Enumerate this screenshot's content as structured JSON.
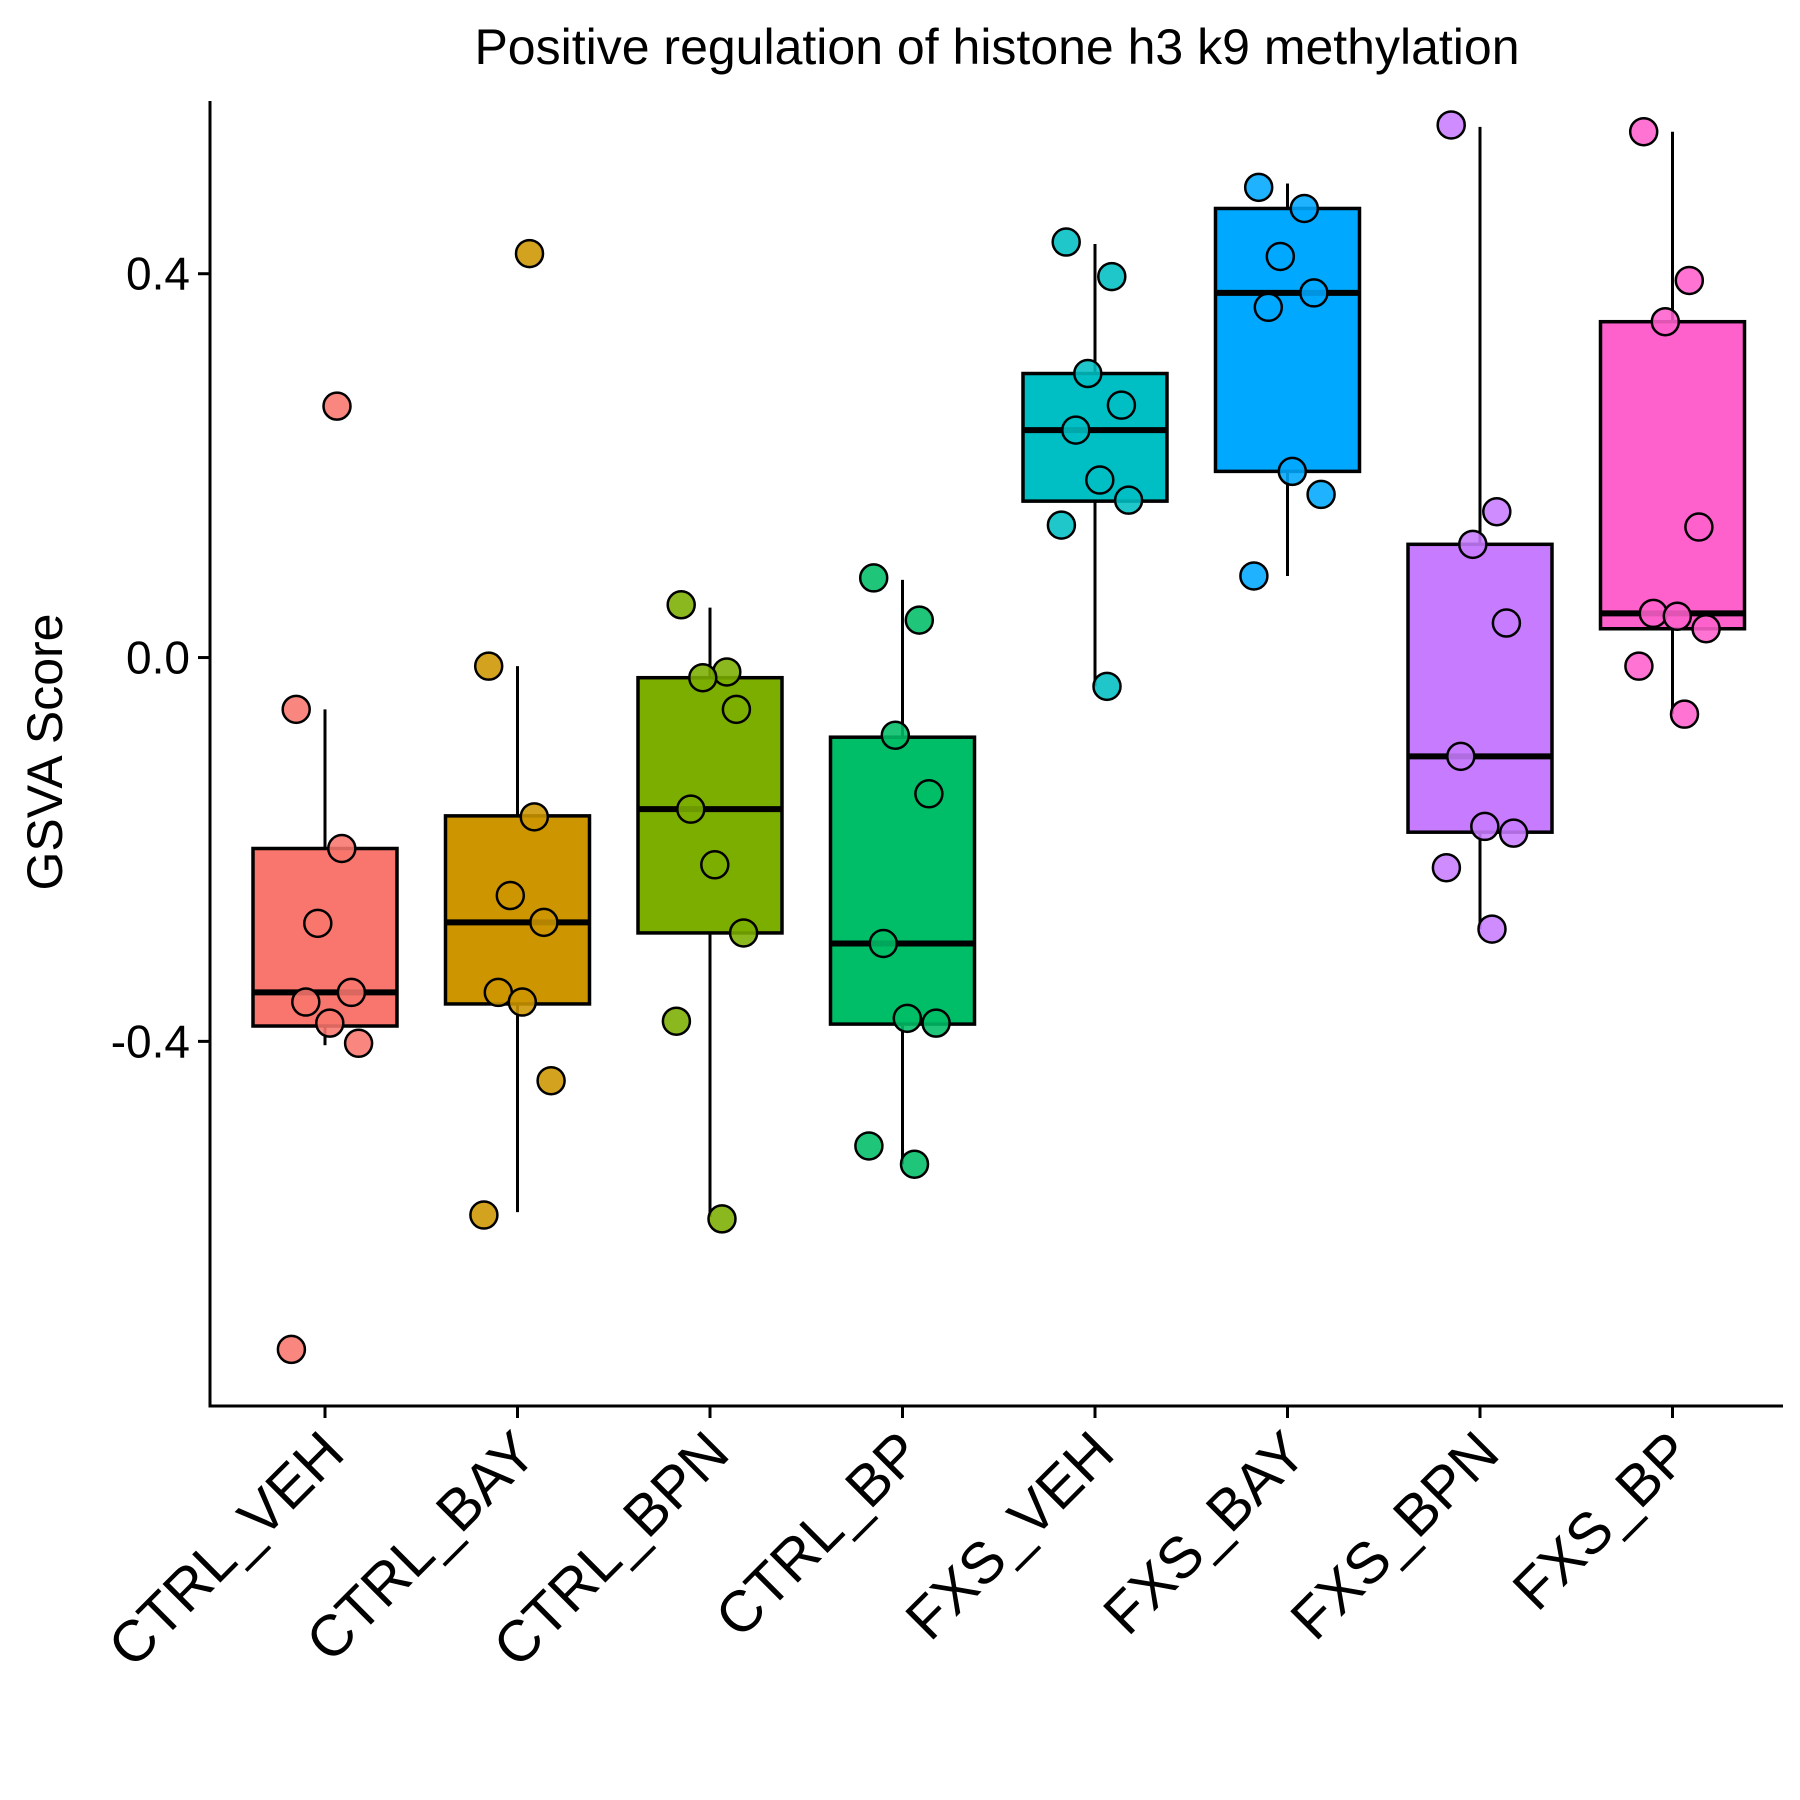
{
  "chart_data": {
    "type": "box",
    "title": "Positive regulation of histone h3 k9 methylation",
    "xlabel": "",
    "ylabel": "GSVA Score",
    "ylim": [
      -0.78,
      0.58
    ],
    "yticks": [
      {
        "value": -0.4,
        "label": "-0.4"
      },
      {
        "value": 0.0,
        "label": "0.0"
      },
      {
        "value": 0.4,
        "label": "0.4"
      }
    ],
    "grid": false,
    "legend": "none",
    "categories": [
      "CTRL_VEH",
      "CTRL_BAY",
      "CTRL_BPN",
      "CTRL_BP",
      "FXS_VEH",
      "FXS_BAY",
      "FXS_BPN",
      "FXS_BP"
    ],
    "groups": [
      {
        "name": "CTRL_VEH",
        "color": "#F8766D",
        "box": {
          "q1": -0.384,
          "median": -0.349,
          "q3": -0.199,
          "whisker_low": -0.404,
          "whisker_high": -0.054
        },
        "points": [
          -0.054,
          -0.199,
          -0.277,
          -0.349,
          -0.359,
          -0.381,
          -0.402,
          -0.721,
          0.262
        ]
      },
      {
        "name": "CTRL_BAY",
        "color": "#CD9600",
        "box": {
          "q1": -0.361,
          "median": -0.276,
          "q3": -0.165,
          "whisker_low": -0.578,
          "whisker_high": -0.009
        },
        "points": [
          -0.009,
          -0.166,
          -0.248,
          -0.276,
          -0.349,
          -0.359,
          -0.441,
          -0.581,
          0.421
        ]
      },
      {
        "name": "CTRL_BPN",
        "color": "#7CAE00",
        "box": {
          "q1": -0.287,
          "median": -0.158,
          "q3": -0.021,
          "whisker_low": -0.583,
          "whisker_high": 0.052
        },
        "points": [
          0.055,
          -0.015,
          -0.021,
          -0.054,
          -0.158,
          -0.216,
          -0.287,
          -0.379,
          -0.585
        ]
      },
      {
        "name": "CTRL_BP",
        "color": "#00BE67",
        "box": {
          "q1": -0.382,
          "median": -0.298,
          "q3": -0.083,
          "whisker_low": -0.528,
          "whisker_high": 0.081
        },
        "points": [
          0.083,
          0.039,
          -0.081,
          -0.142,
          -0.298,
          -0.376,
          -0.381,
          -0.509,
          -0.528
        ]
      },
      {
        "name": "FXS_VEH",
        "color": "#00BFC4",
        "box": {
          "q1": 0.163,
          "median": 0.237,
          "q3": 0.296,
          "whisker_low": -0.03,
          "whisker_high": 0.431
        },
        "points": [
          0.433,
          0.397,
          0.296,
          0.263,
          0.237,
          0.185,
          0.164,
          0.138,
          -0.03
        ]
      },
      {
        "name": "FXS_BAY",
        "color": "#00A9FF",
        "box": {
          "q1": 0.194,
          "median": 0.38,
          "q3": 0.468,
          "whisker_low": 0.085,
          "whisker_high": 0.494
        },
        "points": [
          0.49,
          0.468,
          0.418,
          0.38,
          0.365,
          0.194,
          0.17,
          0.085
        ]
      },
      {
        "name": "FXS_BPN",
        "color": "#C77CFF",
        "box": {
          "q1": -0.182,
          "median": -0.103,
          "q3": 0.118,
          "whisker_low": -0.283,
          "whisker_high": 0.553
        },
        "points": [
          0.555,
          0.152,
          0.118,
          0.036,
          -0.103,
          -0.176,
          -0.183,
          -0.219,
          -0.283
        ]
      },
      {
        "name": "FXS_BP",
        "color": "#FF61CC",
        "box": {
          "q1": 0.03,
          "median": 0.046,
          "q3": 0.35,
          "whisker_low": -0.059,
          "whisker_high": 0.548
        },
        "points": [
          0.548,
          0.393,
          0.35,
          0.136,
          0.046,
          0.043,
          0.03,
          -0.009,
          -0.059
        ]
      }
    ]
  }
}
